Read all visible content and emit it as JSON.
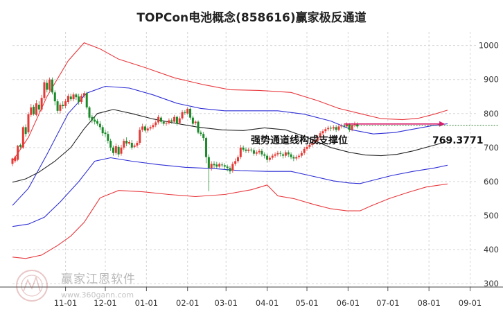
{
  "chart_data": {
    "type": "candlestick-with-channel",
    "title": "TOPCon电池概念(858616)赢家极反通道",
    "xlabel": "",
    "ylabel": "",
    "ylim": [
      290,
      1040
    ],
    "y_ticks": [
      300,
      400,
      500,
      600,
      700,
      800,
      900,
      1000
    ],
    "x_ticks": [
      "11-01",
      "12-01",
      "01-01",
      "02-01",
      "03-01",
      "04-01",
      "05-01",
      "06-01",
      "07-01",
      "08-01",
      "09-01"
    ],
    "x_tick_days": [
      0,
      30,
      61,
      92,
      121,
      152,
      182,
      213,
      243,
      274,
      305
    ],
    "day_range": [
      -40,
      311
    ],
    "grid": true,
    "annotation": {
      "text": "强势通道线构成支撑位",
      "value_label": "769.3771",
      "value": 769.3771,
      "start_day": 210,
      "end_day": 286
    },
    "watermark": {
      "brand": "赢家江恩软件",
      "url": "www.360gann.com"
    },
    "series": [
      {
        "name": "outer-upper",
        "color": "#e8383d",
        "points": [
          [
            -40,
            660
          ],
          [
            -28,
            730
          ],
          [
            -14,
            850
          ],
          [
            2,
            955
          ],
          [
            14,
            1008
          ],
          [
            26,
            990
          ],
          [
            40,
            960
          ],
          [
            60,
            935
          ],
          [
            82,
            905
          ],
          [
            104,
            885
          ],
          [
            124,
            870
          ],
          [
            146,
            868
          ],
          [
            170,
            862
          ],
          [
            190,
            838
          ],
          [
            206,
            815
          ],
          [
            222,
            800
          ],
          [
            238,
            785
          ],
          [
            254,
            782
          ],
          [
            266,
            786
          ],
          [
            278,
            798
          ],
          [
            288,
            810
          ]
        ]
      },
      {
        "name": "inner-upper",
        "color": "#2f2fd6",
        "points": [
          [
            -40,
            530
          ],
          [
            -28,
            580
          ],
          [
            -14,
            680
          ],
          [
            2,
            800
          ],
          [
            16,
            860
          ],
          [
            30,
            880
          ],
          [
            48,
            875
          ],
          [
            66,
            855
          ],
          [
            84,
            830
          ],
          [
            102,
            815
          ],
          [
            120,
            808
          ],
          [
            140,
            808
          ],
          [
            160,
            808
          ],
          [
            180,
            798
          ],
          [
            200,
            778
          ],
          [
            216,
            752
          ],
          [
            232,
            740
          ],
          [
            248,
            744
          ],
          [
            262,
            754
          ],
          [
            276,
            764
          ],
          [
            288,
            770
          ]
        ]
      },
      {
        "name": "middle",
        "color": "#222222",
        "points": [
          [
            -40,
            598
          ],
          [
            -30,
            608
          ],
          [
            -20,
            628
          ],
          [
            -8,
            660
          ],
          [
            4,
            700
          ],
          [
            14,
            755
          ],
          [
            24,
            800
          ],
          [
            36,
            812
          ],
          [
            50,
            800
          ],
          [
            66,
            784
          ],
          [
            82,
            772
          ],
          [
            100,
            760
          ],
          [
            118,
            752
          ],
          [
            134,
            750
          ],
          [
            150,
            758
          ],
          [
            166,
            752
          ],
          [
            182,
            730
          ],
          [
            200,
            700
          ],
          [
            214,
            686
          ],
          [
            226,
            678
          ],
          [
            238,
            676
          ],
          [
            250,
            680
          ],
          [
            262,
            690
          ],
          [
            276,
            705
          ],
          [
            288,
            718
          ]
        ]
      },
      {
        "name": "inner-lower",
        "color": "#2f2fd6",
        "points": [
          [
            -40,
            468
          ],
          [
            -28,
            475
          ],
          [
            -16,
            495
          ],
          [
            -4,
            540
          ],
          [
            10,
            600
          ],
          [
            22,
            660
          ],
          [
            34,
            670
          ],
          [
            50,
            660
          ],
          [
            70,
            650
          ],
          [
            90,
            642
          ],
          [
            112,
            638
          ],
          [
            132,
            632
          ],
          [
            152,
            630
          ],
          [
            170,
            630
          ],
          [
            186,
            616
          ],
          [
            202,
            602
          ],
          [
            214,
            596
          ],
          [
            222,
            594
          ],
          [
            230,
            602
          ],
          [
            246,
            618
          ],
          [
            262,
            630
          ],
          [
            278,
            640
          ],
          [
            288,
            648
          ]
        ]
      },
      {
        "name": "outer-lower",
        "color": "#e8383d",
        "points": [
          [
            -40,
            378
          ],
          [
            -30,
            374
          ],
          [
            -18,
            384
          ],
          [
            -6,
            412
          ],
          [
            4,
            440
          ],
          [
            14,
            480
          ],
          [
            26,
            552
          ],
          [
            40,
            574
          ],
          [
            58,
            570
          ],
          [
            78,
            562
          ],
          [
            98,
            556
          ],
          [
            120,
            562
          ],
          [
            140,
            576
          ],
          [
            152,
            590
          ],
          [
            160,
            558
          ],
          [
            172,
            550
          ],
          [
            188,
            532
          ],
          [
            200,
            520
          ],
          [
            212,
            514
          ],
          [
            222,
            514
          ],
          [
            230,
            528
          ],
          [
            244,
            550
          ],
          [
            258,
            568
          ],
          [
            272,
            584
          ],
          [
            288,
            593
          ]
        ]
      }
    ],
    "candles": [
      [
        -40,
        652,
        668,
        645,
        670
      ],
      [
        -38,
        660,
        672,
        655,
        676
      ],
      [
        -36,
        664,
        705,
        660,
        708
      ],
      [
        -34,
        708,
        702,
        697,
        712
      ],
      [
        -32,
        700,
        760,
        696,
        764
      ],
      [
        -30,
        760,
        740,
        732,
        768
      ],
      [
        -28,
        745,
        798,
        740,
        804
      ],
      [
        -26,
        796,
        818,
        790,
        828
      ],
      [
        -24,
        820,
        798,
        794,
        826
      ],
      [
        -22,
        796,
        830,
        792,
        840
      ],
      [
        -20,
        826,
        812,
        804,
        836
      ],
      [
        -18,
        812,
        846,
        806,
        855
      ],
      [
        -16,
        846,
        892,
        840,
        900
      ],
      [
        -14,
        890,
        870,
        862,
        898
      ],
      [
        -12,
        870,
        900,
        866,
        906
      ],
      [
        -10,
        900,
        862,
        856,
        906
      ],
      [
        -8,
        862,
        836,
        824,
        868
      ],
      [
        -6,
        836,
        808,
        800,
        842
      ],
      [
        -4,
        808,
        826,
        800,
        832
      ],
      [
        -2,
        826,
        822,
        814,
        836
      ],
      [
        0,
        822,
        836,
        816,
        842
      ],
      [
        2,
        834,
        852,
        828,
        858
      ],
      [
        4,
        850,
        842,
        836,
        858
      ],
      [
        6,
        842,
        856,
        836,
        862
      ],
      [
        8,
        856,
        848,
        840,
        860
      ],
      [
        10,
        850,
        834,
        826,
        858
      ],
      [
        12,
        834,
        852,
        828,
        858
      ],
      [
        14,
        852,
        860,
        846,
        866
      ],
      [
        16,
        860,
        818,
        812,
        864
      ],
      [
        18,
        818,
        788,
        780,
        822
      ],
      [
        20,
        790,
        780,
        772,
        796
      ],
      [
        22,
        782,
        776,
        768,
        790
      ],
      [
        24,
        778,
        770,
        764,
        784
      ],
      [
        26,
        770,
        760,
        752,
        778
      ],
      [
        28,
        760,
        742,
        734,
        766
      ],
      [
        30,
        744,
        740,
        732,
        752
      ],
      [
        32,
        740,
        720,
        712,
        748
      ],
      [
        34,
        720,
        700,
        690,
        726
      ],
      [
        36,
        700,
        684,
        676,
        706
      ],
      [
        38,
        684,
        704,
        678,
        712
      ],
      [
        40,
        702,
        680,
        672,
        708
      ],
      [
        42,
        682,
        700,
        676,
        708
      ],
      [
        44,
        700,
        720,
        694,
        726
      ],
      [
        46,
        720,
        712,
        704,
        730
      ],
      [
        48,
        712,
        716,
        708,
        722
      ],
      [
        50,
        714,
        700,
        694,
        722
      ],
      [
        52,
        702,
        706,
        698,
        712
      ],
      [
        54,
        706,
        714,
        700,
        720
      ],
      [
        56,
        714,
        752,
        708,
        760
      ],
      [
        58,
        752,
        762,
        746,
        770
      ],
      [
        60,
        762,
        750,
        744,
        768
      ],
      [
        62,
        750,
        756,
        744,
        762
      ],
      [
        64,
        756,
        760,
        750,
        766
      ],
      [
        66,
        760,
        766,
        754,
        772
      ],
      [
        68,
        766,
        774,
        760,
        780
      ],
      [
        70,
        774,
        790,
        768,
        796
      ],
      [
        72,
        788,
        776,
        770,
        792
      ],
      [
        74,
        776,
        770,
        764,
        780
      ],
      [
        76,
        770,
        772,
        764,
        778
      ],
      [
        78,
        772,
        780,
        768,
        786
      ],
      [
        80,
        780,
        776,
        770,
        786
      ],
      [
        82,
        776,
        790,
        772,
        796
      ],
      [
        84,
        790,
        770,
        764,
        794
      ],
      [
        86,
        772,
        786,
        768,
        792
      ],
      [
        88,
        786,
        804,
        782,
        810
      ],
      [
        90,
        804,
        802,
        796,
        810
      ],
      [
        92,
        800,
        814,
        796,
        818
      ],
      [
        94,
        814,
        788,
        782,
        818
      ],
      [
        96,
        788,
        770,
        764,
        794
      ],
      [
        98,
        772,
        776,
        766,
        780
      ],
      [
        100,
        776,
        744,
        740,
        780
      ],
      [
        102,
        744,
        740,
        734,
        750
      ],
      [
        104,
        740,
        728,
        720,
        746
      ],
      [
        106,
        728,
        672,
        654,
        732
      ],
      [
        108,
        672,
        640,
        572,
        680
      ],
      [
        110,
        640,
        652,
        632,
        660
      ],
      [
        112,
        652,
        648,
        640,
        660
      ],
      [
        114,
        650,
        644,
        638,
        658
      ],
      [
        116,
        644,
        652,
        640,
        656
      ],
      [
        118,
        650,
        648,
        642,
        656
      ],
      [
        120,
        648,
        644,
        636,
        654
      ],
      [
        122,
        644,
        640,
        630,
        650
      ],
      [
        124,
        640,
        630,
        622,
        646
      ],
      [
        126,
        632,
        652,
        626,
        658
      ],
      [
        128,
        652,
        660,
        646,
        668
      ],
      [
        130,
        660,
        672,
        654,
        678
      ],
      [
        132,
        672,
        700,
        666,
        708
      ],
      [
        134,
        700,
        694,
        688,
        706
      ],
      [
        136,
        694,
        690,
        684,
        700
      ],
      [
        138,
        690,
        694,
        684,
        700
      ],
      [
        140,
        694,
        692,
        686,
        700
      ],
      [
        142,
        692,
        682,
        676,
        698
      ],
      [
        144,
        682,
        686,
        676,
        692
      ],
      [
        146,
        686,
        690,
        680,
        696
      ],
      [
        148,
        690,
        680,
        674,
        696
      ],
      [
        150,
        680,
        676,
        668,
        686
      ],
      [
        152,
        676,
        664,
        656,
        682
      ],
      [
        154,
        664,
        670,
        658,
        676
      ],
      [
        156,
        670,
        676,
        664,
        682
      ],
      [
        158,
        676,
        680,
        670,
        686
      ],
      [
        160,
        680,
        684,
        674,
        690
      ],
      [
        162,
        684,
        682,
        674,
        690
      ],
      [
        164,
        680,
        676,
        668,
        686
      ],
      [
        166,
        676,
        686,
        670,
        692
      ],
      [
        168,
        686,
        680,
        672,
        692
      ],
      [
        170,
        680,
        672,
        666,
        686
      ],
      [
        172,
        672,
        668,
        660,
        678
      ],
      [
        174,
        668,
        672,
        662,
        678
      ],
      [
        176,
        672,
        676,
        666,
        682
      ],
      [
        178,
        676,
        684,
        670,
        690
      ],
      [
        180,
        684,
        696,
        678,
        702
      ],
      [
        182,
        696,
        702,
        690,
        708
      ],
      [
        184,
        702,
        708,
        696,
        714
      ],
      [
        186,
        708,
        716,
        702,
        722
      ],
      [
        188,
        716,
        720,
        710,
        728
      ],
      [
        190,
        720,
        730,
        714,
        736
      ],
      [
        192,
        730,
        742,
        724,
        748
      ],
      [
        194,
        742,
        748,
        736,
        754
      ],
      [
        196,
        748,
        754,
        742,
        760
      ],
      [
        198,
        754,
        758,
        748,
        764
      ],
      [
        200,
        758,
        756,
        748,
        764
      ],
      [
        202,
        756,
        760,
        750,
        766
      ],
      [
        204,
        760,
        752,
        746,
        766
      ],
      [
        206,
        752,
        762,
        748,
        768
      ],
      [
        208,
        762,
        764,
        756,
        770
      ],
      [
        210,
        764,
        762,
        756,
        770
      ],
      [
        212,
        762,
        768,
        758,
        774
      ],
      [
        214,
        768,
        752,
        746,
        772
      ],
      [
        216,
        752,
        766,
        748,
        772
      ],
      [
        218,
        766,
        770,
        760,
        776
      ],
      [
        220,
        770,
        762,
        756,
        774
      ]
    ]
  }
}
